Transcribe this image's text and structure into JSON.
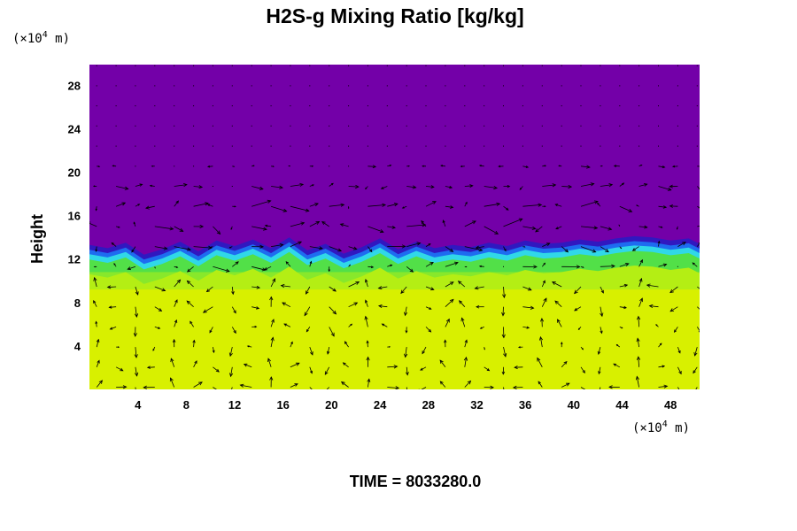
{
  "chart_data": {
    "type": "heatmap",
    "title": "H2S-g Mixing Ratio [kg/kg]",
    "ylabel": "Height",
    "xlabel": "",
    "x_unit": {
      "prefix": "(×10",
      "exp": "4",
      "suffix": " m)"
    },
    "y_unit": {
      "prefix": "(×10",
      "exp": "4",
      "suffix": " m)"
    },
    "xlim": [
      0,
      50.4
    ],
    "ylim": [
      0,
      29.9
    ],
    "xticks": [
      4,
      8,
      12,
      16,
      20,
      24,
      28,
      32,
      36,
      40,
      44,
      48
    ],
    "yticks": [
      4,
      8,
      12,
      16,
      20,
      24,
      28
    ],
    "colors": {
      "upper": "#7300a8",
      "lower": "#d8f000",
      "band_light": "#b4ee14",
      "band_green": "#52e048",
      "band_cyan": "#30d8e8",
      "band_blue": "#1e6cf0",
      "band_navy": "#3018c0"
    },
    "interface_height": [
      {
        "x": 0.0,
        "y": 13.2
      },
      {
        "x": 1.5,
        "y": 12.9
      },
      {
        "x": 3.0,
        "y": 13.4
      },
      {
        "x": 4.5,
        "y": 12.3
      },
      {
        "x": 6.0,
        "y": 12.8
      },
      {
        "x": 7.5,
        "y": 13.5
      },
      {
        "x": 9.0,
        "y": 12.6
      },
      {
        "x": 10.5,
        "y": 13.6
      },
      {
        "x": 12.0,
        "y": 13.1
      },
      {
        "x": 13.5,
        "y": 13.7
      },
      {
        "x": 15.0,
        "y": 12.9
      },
      {
        "x": 16.5,
        "y": 13.9
      },
      {
        "x": 18.0,
        "y": 12.7
      },
      {
        "x": 19.5,
        "y": 13.3
      },
      {
        "x": 21.0,
        "y": 12.4
      },
      {
        "x": 22.5,
        "y": 13.0
      },
      {
        "x": 24.0,
        "y": 13.8
      },
      {
        "x": 25.5,
        "y": 12.8
      },
      {
        "x": 27.0,
        "y": 13.5
      },
      {
        "x": 28.5,
        "y": 12.9
      },
      {
        "x": 30.0,
        "y": 13.2
      },
      {
        "x": 31.5,
        "y": 13.0
      },
      {
        "x": 33.0,
        "y": 13.4
      },
      {
        "x": 34.5,
        "y": 13.1
      },
      {
        "x": 36.0,
        "y": 13.6
      },
      {
        "x": 37.5,
        "y": 13.3
      },
      {
        "x": 39.0,
        "y": 13.4
      },
      {
        "x": 40.5,
        "y": 13.7
      },
      {
        "x": 42.0,
        "y": 13.5
      },
      {
        "x": 43.5,
        "y": 13.8
      },
      {
        "x": 45.0,
        "y": 14.0
      },
      {
        "x": 46.5,
        "y": 13.9
      },
      {
        "x": 48.0,
        "y": 13.6
      },
      {
        "x": 49.5,
        "y": 13.8
      },
      {
        "x": 50.4,
        "y": 13.3
      }
    ],
    "vector_field": {
      "x_spacing": 1.6,
      "y_spacing": 1.85,
      "x_start": 0.6,
      "y_start": 0.2,
      "arrow_color": "#000000"
    }
  },
  "time_label": "TIME = 8033280.0"
}
